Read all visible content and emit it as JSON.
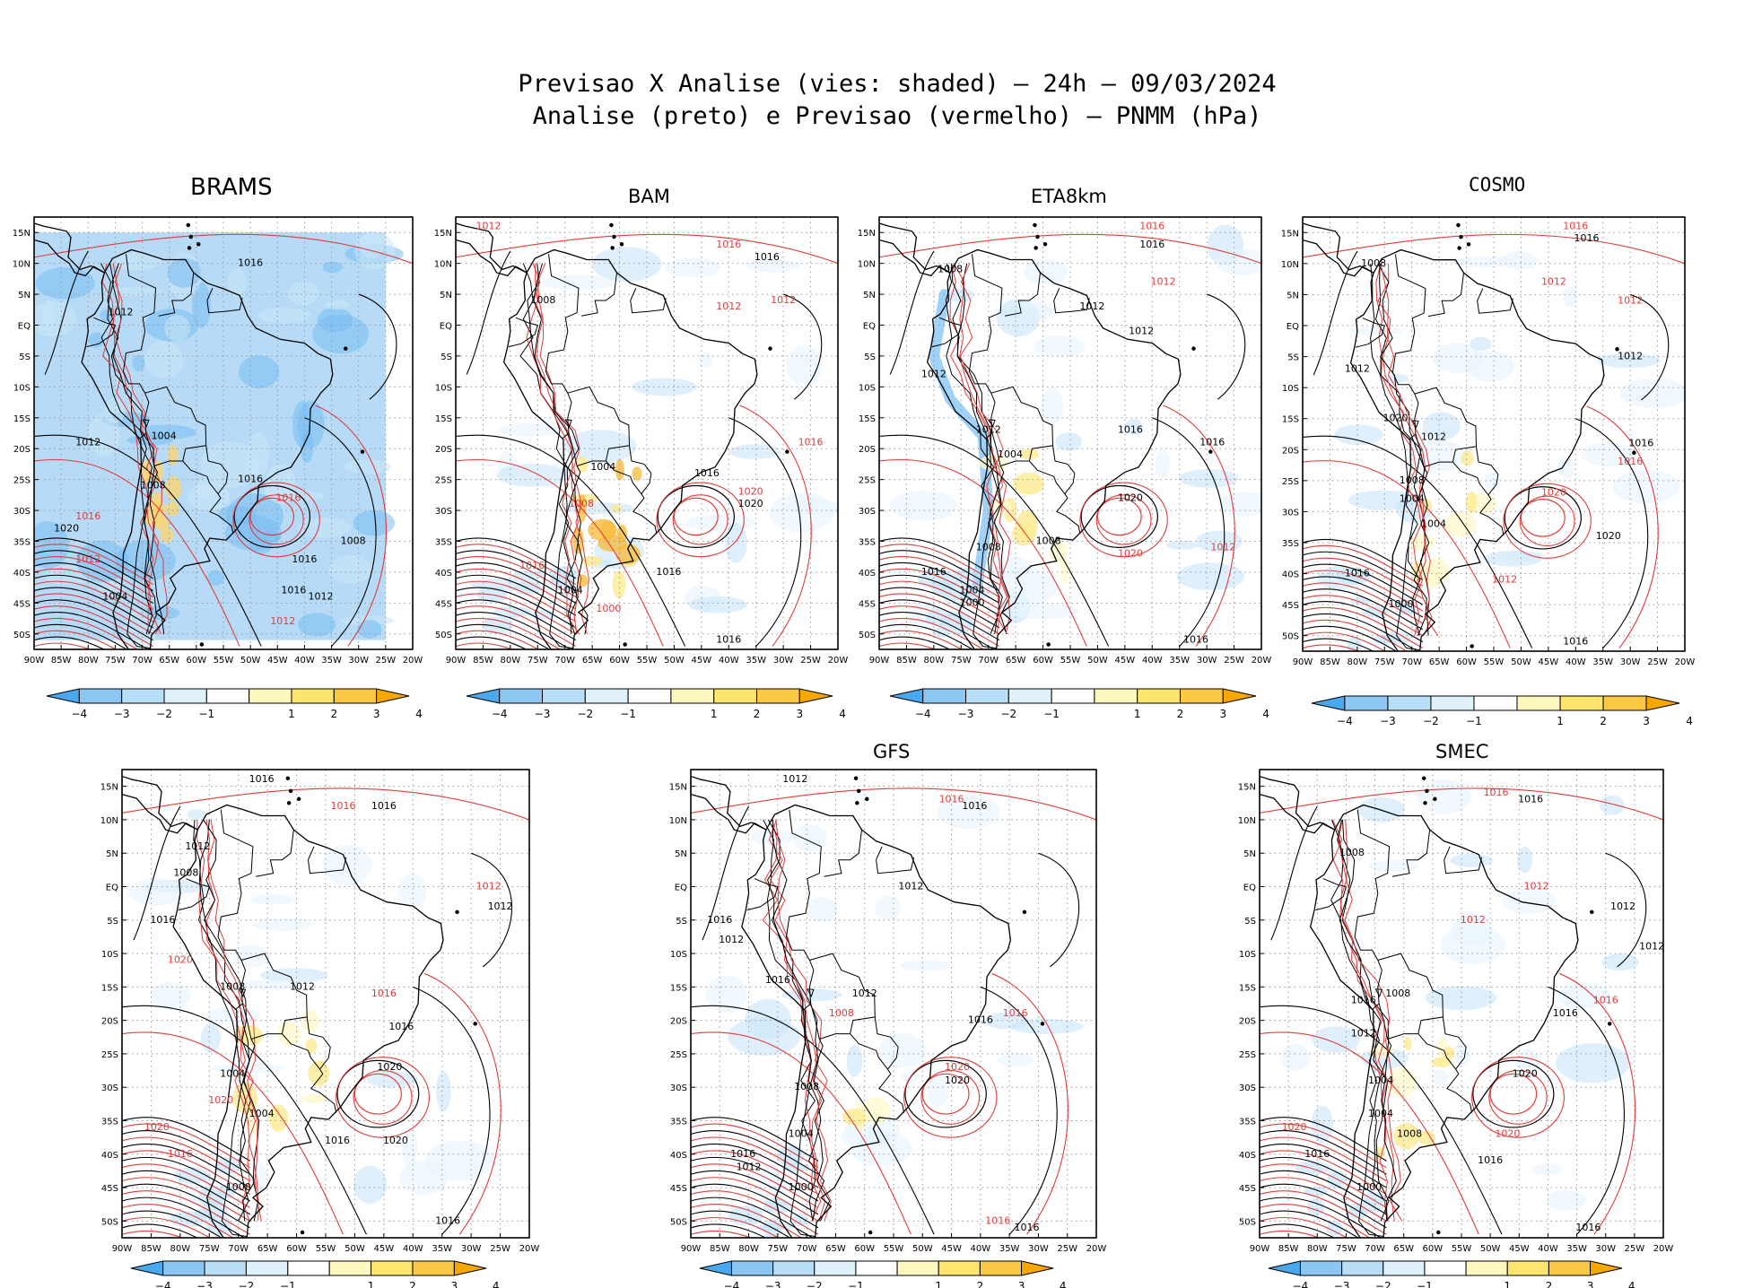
{
  "header": {
    "title_line1": "Previsao X Analise (vies: shaded) – 24h – 09/03/2024",
    "title_line2": "Analise (preto) e Previsao (vermelho) – PNMM (hPa)"
  },
  "axes": {
    "lon_ticks": [
      "90W",
      "85W",
      "80W",
      "75W",
      "70W",
      "65W",
      "60W",
      "55W",
      "50W",
      "45W",
      "40W",
      "35W",
      "30W",
      "25W",
      "20W"
    ],
    "lat_ticks": [
      "15N",
      "10N",
      "5N",
      "EQ",
      "5S",
      "10S",
      "15S",
      "20S",
      "25S",
      "30S",
      "35S",
      "40S",
      "45S",
      "50S"
    ],
    "lon_range": [
      -90,
      -20
    ],
    "lat_range": [
      -52.5,
      17.5
    ]
  },
  "colorbar": {
    "labels": [
      "−4",
      "−3",
      "−2",
      "−1",
      "1",
      "2",
      "3",
      "4"
    ],
    "colors": [
      "#4aa8ee",
      "#8cc6f2",
      "#b8def6",
      "#dff2fc",
      "#ffffff",
      "#fff8be",
      "#fde56e",
      "#fbc844",
      "#f6a800"
    ]
  },
  "colors": {
    "analysis_contour": "#000000",
    "forecast_contour": "#e03c3c",
    "frame": "#000000",
    "gridline": "#9a9a9a"
  },
  "panels": [
    {
      "id": "brams",
      "title": "BRAMS",
      "labels": [
        {
          "text": "1016",
          "lon": -50,
          "lat": 10,
          "c": "a"
        },
        {
          "text": "1012",
          "lon": -74,
          "lat": 2,
          "c": "a"
        },
        {
          "text": "1004",
          "lon": -66,
          "lat": -18,
          "c": "a"
        },
        {
          "text": "1012",
          "lon": -80,
          "lat": -19,
          "c": "a"
        },
        {
          "text": "1008",
          "lon": -68,
          "lat": -26,
          "c": "a"
        },
        {
          "text": "1016",
          "lon": -50,
          "lat": -25,
          "c": "a"
        },
        {
          "text": "1016",
          "lon": -43,
          "lat": -28,
          "c": "f"
        },
        {
          "text": "1016",
          "lon": -40,
          "lat": -38,
          "c": "a"
        },
        {
          "text": "1016",
          "lon": -42,
          "lat": -43,
          "c": "a"
        },
        {
          "text": "1012",
          "lon": -37,
          "lat": -44,
          "c": "a"
        },
        {
          "text": "1020",
          "lon": -84,
          "lat": -33,
          "c": "a"
        },
        {
          "text": "1016",
          "lon": -80,
          "lat": -31,
          "c": "f"
        },
        {
          "text": "1012",
          "lon": -80,
          "lat": -38,
          "c": "f"
        },
        {
          "text": "1008",
          "lon": -31,
          "lat": -35,
          "c": "a"
        },
        {
          "text": "1012",
          "lon": -44,
          "lat": -48,
          "c": "f"
        },
        {
          "text": "1004",
          "lon": -75,
          "lat": -44,
          "c": "a"
        }
      ]
    },
    {
      "id": "bam",
      "title": "BAM",
      "labels": [
        {
          "text": "1016",
          "lon": -40,
          "lat": 13,
          "c": "f"
        },
        {
          "text": "1016",
          "lon": -33,
          "lat": 11,
          "c": "a"
        },
        {
          "text": "1012",
          "lon": -84,
          "lat": 16,
          "c": "f"
        },
        {
          "text": "1008",
          "lon": -74,
          "lat": 4,
          "c": "a"
        },
        {
          "text": "1012",
          "lon": -40,
          "lat": 3,
          "c": "f"
        },
        {
          "text": "1012",
          "lon": -30,
          "lat": 4,
          "c": "f"
        },
        {
          "text": "1004",
          "lon": -63,
          "lat": -23,
          "c": "a"
        },
        {
          "text": "1008",
          "lon": -67,
          "lat": -29,
          "c": "f"
        },
        {
          "text": "1016",
          "lon": -44,
          "lat": -24,
          "c": "a"
        },
        {
          "text": "1020",
          "lon": -36,
          "lat": -27,
          "c": "f"
        },
        {
          "text": "1020",
          "lon": -36,
          "lat": -29,
          "c": "a"
        },
        {
          "text": "1016",
          "lon": -51,
          "lat": -40,
          "c": "a"
        },
        {
          "text": "1016",
          "lon": -76,
          "lat": -39,
          "c": "f"
        },
        {
          "text": "1004",
          "lon": -69,
          "lat": -43,
          "c": "a"
        },
        {
          "text": "1000",
          "lon": -62,
          "lat": -46,
          "c": "f"
        },
        {
          "text": "1016",
          "lon": -40,
          "lat": -51,
          "c": "a"
        },
        {
          "text": "1016",
          "lon": -25,
          "lat": -19,
          "c": "f"
        }
      ]
    },
    {
      "id": "eta8km",
      "title": "ETA8km",
      "labels": [
        {
          "text": "1016",
          "lon": -40,
          "lat": 16,
          "c": "f"
        },
        {
          "text": "1016",
          "lon": -40,
          "lat": 13,
          "c": "a"
        },
        {
          "text": "1012",
          "lon": -38,
          "lat": 7,
          "c": "f"
        },
        {
          "text": "1012",
          "lon": -51,
          "lat": 3,
          "c": "a"
        },
        {
          "text": "1008",
          "lon": -77,
          "lat": 9,
          "c": "a"
        },
        {
          "text": "1012",
          "lon": -42,
          "lat": -1,
          "c": "a"
        },
        {
          "text": "1012",
          "lon": -80,
          "lat": -8,
          "c": "a"
        },
        {
          "text": "1012",
          "lon": -70,
          "lat": -17,
          "c": "a"
        },
        {
          "text": "1004",
          "lon": -66,
          "lat": -21,
          "c": "a"
        },
        {
          "text": "1016",
          "lon": -44,
          "lat": -17,
          "c": "a"
        },
        {
          "text": "1016",
          "lon": -29,
          "lat": -19,
          "c": "a"
        },
        {
          "text": "1020",
          "lon": -44,
          "lat": -28,
          "c": "a"
        },
        {
          "text": "1020",
          "lon": -44,
          "lat": -37,
          "c": "f"
        },
        {
          "text": "1016",
          "lon": -80,
          "lat": -40,
          "c": "a"
        },
        {
          "text": "1008",
          "lon": -70,
          "lat": -36,
          "c": "a"
        },
        {
          "text": "1004",
          "lon": -73,
          "lat": -43,
          "c": "a"
        },
        {
          "text": "1000",
          "lon": -73,
          "lat": -45,
          "c": "a"
        },
        {
          "text": "1016",
          "lon": -32,
          "lat": -51,
          "c": "a"
        },
        {
          "text": "1012",
          "lon": -27,
          "lat": -36,
          "c": "f"
        },
        {
          "text": "1008",
          "lon": -59,
          "lat": -35,
          "c": "a"
        }
      ]
    },
    {
      "id": "cosmo",
      "title": "COSMO",
      "labels": [
        {
          "text": "1016",
          "lon": -40,
          "lat": 16,
          "c": "f"
        },
        {
          "text": "1016",
          "lon": -38,
          "lat": 14,
          "c": "a"
        },
        {
          "text": "1012",
          "lon": -44,
          "lat": 7,
          "c": "f"
        },
        {
          "text": "1012",
          "lon": -30,
          "lat": 4,
          "c": "f"
        },
        {
          "text": "1008",
          "lon": -77,
          "lat": 10,
          "c": "a"
        },
        {
          "text": "1012",
          "lon": -80,
          "lat": -7,
          "c": "a"
        },
        {
          "text": "1012",
          "lon": -30,
          "lat": -5,
          "c": "a"
        },
        {
          "text": "1020",
          "lon": -73,
          "lat": -15,
          "c": "a"
        },
        {
          "text": "1012",
          "lon": -66,
          "lat": -18,
          "c": "a"
        },
        {
          "text": "1008",
          "lon": -70,
          "lat": -25,
          "c": "a"
        },
        {
          "text": "1004",
          "lon": -70,
          "lat": -28,
          "c": "a"
        },
        {
          "text": "1016",
          "lon": -28,
          "lat": -19,
          "c": "a"
        },
        {
          "text": "1016",
          "lon": -30,
          "lat": -22,
          "c": "f"
        },
        {
          "text": "1020",
          "lon": -44,
          "lat": -27,
          "c": "f"
        },
        {
          "text": "1020",
          "lon": -34,
          "lat": -34,
          "c": "a"
        },
        {
          "text": "1016",
          "lon": -80,
          "lat": -40,
          "c": "a"
        },
        {
          "text": "1004",
          "lon": -66,
          "lat": -32,
          "c": "a"
        },
        {
          "text": "1016",
          "lon": -40,
          "lat": -51,
          "c": "a"
        },
        {
          "text": "1012",
          "lon": -53,
          "lat": -41,
          "c": "f"
        },
        {
          "text": "1000",
          "lon": -72,
          "lat": -45,
          "c": "a"
        }
      ]
    },
    {
      "id": "panel5",
      "title": "",
      "labels": [
        {
          "text": "1016",
          "lon": -66,
          "lat": 16,
          "c": "a"
        },
        {
          "text": "1016",
          "lon": -45,
          "lat": 12,
          "c": "a"
        },
        {
          "text": "1016",
          "lon": -52,
          "lat": 12,
          "c": "f"
        },
        {
          "text": "1012",
          "lon": -77,
          "lat": 6,
          "c": "a"
        },
        {
          "text": "1008",
          "lon": -79,
          "lat": 2,
          "c": "a"
        },
        {
          "text": "1012",
          "lon": -27,
          "lat": 0,
          "c": "f"
        },
        {
          "text": "1012",
          "lon": -25,
          "lat": -3,
          "c": "a"
        },
        {
          "text": "1016",
          "lon": -83,
          "lat": -5,
          "c": "a"
        },
        {
          "text": "1020",
          "lon": -80,
          "lat": -11,
          "c": "f"
        },
        {
          "text": "1008",
          "lon": -71,
          "lat": -15,
          "c": "a"
        },
        {
          "text": "1012",
          "lon": -59,
          "lat": -15,
          "c": "a"
        },
        {
          "text": "1016",
          "lon": -45,
          "lat": -16,
          "c": "f"
        },
        {
          "text": "1016",
          "lon": -42,
          "lat": -21,
          "c": "a"
        },
        {
          "text": "1020",
          "lon": -44,
          "lat": -27,
          "c": "a"
        },
        {
          "text": "1004",
          "lon": -71,
          "lat": -28,
          "c": "a"
        },
        {
          "text": "1020",
          "lon": -73,
          "lat": -32,
          "c": "f"
        },
        {
          "text": "1004",
          "lon": -66,
          "lat": -34,
          "c": "a"
        },
        {
          "text": "1020",
          "lon": -84,
          "lat": -36,
          "c": "f"
        },
        {
          "text": "1016",
          "lon": -80,
          "lat": -40,
          "c": "f"
        },
        {
          "text": "1020",
          "lon": -43,
          "lat": -38,
          "c": "a"
        },
        {
          "text": "1016",
          "lon": -53,
          "lat": -38,
          "c": "a"
        },
        {
          "text": "1000",
          "lon": -70,
          "lat": -45,
          "c": "a"
        },
        {
          "text": "1016",
          "lon": -34,
          "lat": -50,
          "c": "a"
        }
      ]
    },
    {
      "id": "gfs",
      "title": "GFS",
      "labels": [
        {
          "text": "1012",
          "lon": -72,
          "lat": 16,
          "c": "a"
        },
        {
          "text": "1016",
          "lon": -45,
          "lat": 13,
          "c": "f"
        },
        {
          "text": "1016",
          "lon": -41,
          "lat": 12,
          "c": "a"
        },
        {
          "text": "1012",
          "lon": -52,
          "lat": 0,
          "c": "a"
        },
        {
          "text": "1016",
          "lon": -85,
          "lat": -5,
          "c": "a"
        },
        {
          "text": "1012",
          "lon": -83,
          "lat": -8,
          "c": "a"
        },
        {
          "text": "1016",
          "lon": -75,
          "lat": -14,
          "c": "a"
        },
        {
          "text": "1008",
          "lon": -64,
          "lat": -19,
          "c": "f"
        },
        {
          "text": "1012",
          "lon": -60,
          "lat": -16,
          "c": "a"
        },
        {
          "text": "1016",
          "lon": -40,
          "lat": -20,
          "c": "a"
        },
        {
          "text": "1016",
          "lon": -34,
          "lat": -19,
          "c": "f"
        },
        {
          "text": "1020",
          "lon": -44,
          "lat": -27,
          "c": "f"
        },
        {
          "text": "1020",
          "lon": -44,
          "lat": -29,
          "c": "a"
        },
        {
          "text": "1008",
          "lon": -70,
          "lat": -30,
          "c": "a"
        },
        {
          "text": "1004",
          "lon": -71,
          "lat": -37,
          "c": "a"
        },
        {
          "text": "1016",
          "lon": -81,
          "lat": -40,
          "c": "a"
        },
        {
          "text": "1012",
          "lon": -80,
          "lat": -42,
          "c": "a"
        },
        {
          "text": "1000",
          "lon": -71,
          "lat": -45,
          "c": "a"
        },
        {
          "text": "1016",
          "lon": -37,
          "lat": -50,
          "c": "f"
        },
        {
          "text": "1016",
          "lon": -32,
          "lat": -51,
          "c": "a"
        }
      ]
    },
    {
      "id": "smec",
      "title": "SMEC",
      "labels": [
        {
          "text": "1016",
          "lon": -49,
          "lat": 14,
          "c": "f"
        },
        {
          "text": "1016",
          "lon": -43,
          "lat": 13,
          "c": "a"
        },
        {
          "text": "1008",
          "lon": -74,
          "lat": 5,
          "c": "a"
        },
        {
          "text": "1012",
          "lon": -42,
          "lat": 0,
          "c": "f"
        },
        {
          "text": "1012",
          "lon": -27,
          "lat": -3,
          "c": "a"
        },
        {
          "text": "1012",
          "lon": -53,
          "lat": -5,
          "c": "f"
        },
        {
          "text": "1012",
          "lon": -22,
          "lat": -9,
          "c": "a"
        },
        {
          "text": "1016",
          "lon": -72,
          "lat": -17,
          "c": "a"
        },
        {
          "text": "1008",
          "lon": -66,
          "lat": -16,
          "c": "a"
        },
        {
          "text": "1012",
          "lon": -72,
          "lat": -22,
          "c": "a"
        },
        {
          "text": "1016",
          "lon": -37,
          "lat": -19,
          "c": "a"
        },
        {
          "text": "1016",
          "lon": -30,
          "lat": -17,
          "c": "f"
        },
        {
          "text": "1020",
          "lon": -44,
          "lat": -28,
          "c": "a"
        },
        {
          "text": "1004",
          "lon": -69,
          "lat": -29,
          "c": "a"
        },
        {
          "text": "1004",
          "lon": -69,
          "lat": -34,
          "c": "a"
        },
        {
          "text": "1020",
          "lon": -84,
          "lat": -36,
          "c": "f"
        },
        {
          "text": "1020",
          "lon": -47,
          "lat": -37,
          "c": "f"
        },
        {
          "text": "1016",
          "lon": -80,
          "lat": -40,
          "c": "a"
        },
        {
          "text": "1016",
          "lon": -50,
          "lat": -41,
          "c": "a"
        },
        {
          "text": "1000",
          "lon": -71,
          "lat": -45,
          "c": "a"
        },
        {
          "text": "1016",
          "lon": -33,
          "lat": -51,
          "c": "a"
        },
        {
          "text": "1008",
          "lon": -64,
          "lat": -37,
          "c": "a"
        }
      ]
    }
  ]
}
